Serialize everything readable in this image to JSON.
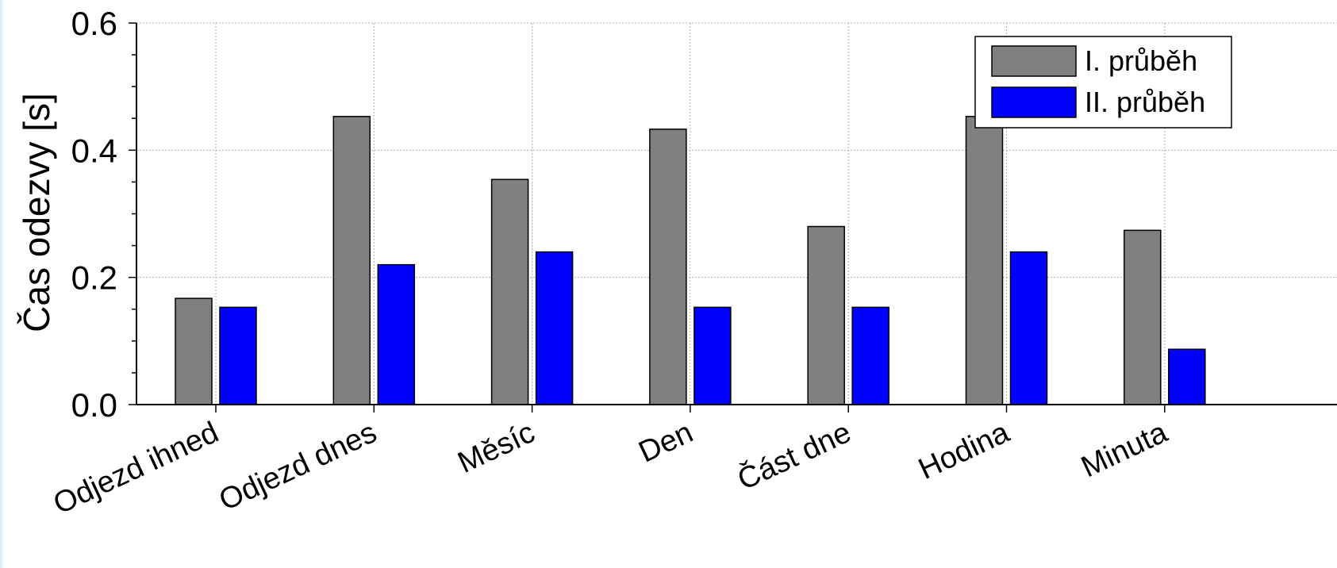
{
  "chart_data": {
    "type": "bar",
    "title": "",
    "xlabel": "",
    "ylabel": "Čas odezvy [s]",
    "ylim": [
      0,
      0.6
    ],
    "yticks": [
      "0.0",
      "0.2",
      "0.4",
      "0.6"
    ],
    "grid": true,
    "legend_position": "top-right",
    "categories": [
      "Odjezd ihned",
      "Odjezd dnes",
      "Měsíc",
      "Den",
      "Část dne",
      "Hodina",
      "Minuta"
    ],
    "series": [
      {
        "name": "I. průběh",
        "color": "#808080",
        "values": [
          0.167,
          0.453,
          0.354,
          0.433,
          0.28,
          0.453,
          0.274
        ]
      },
      {
        "name": "II. průběh",
        "color": "#0000ff",
        "values": [
          0.153,
          0.22,
          0.24,
          0.153,
          0.153,
          0.24,
          0.087
        ]
      }
    ]
  }
}
